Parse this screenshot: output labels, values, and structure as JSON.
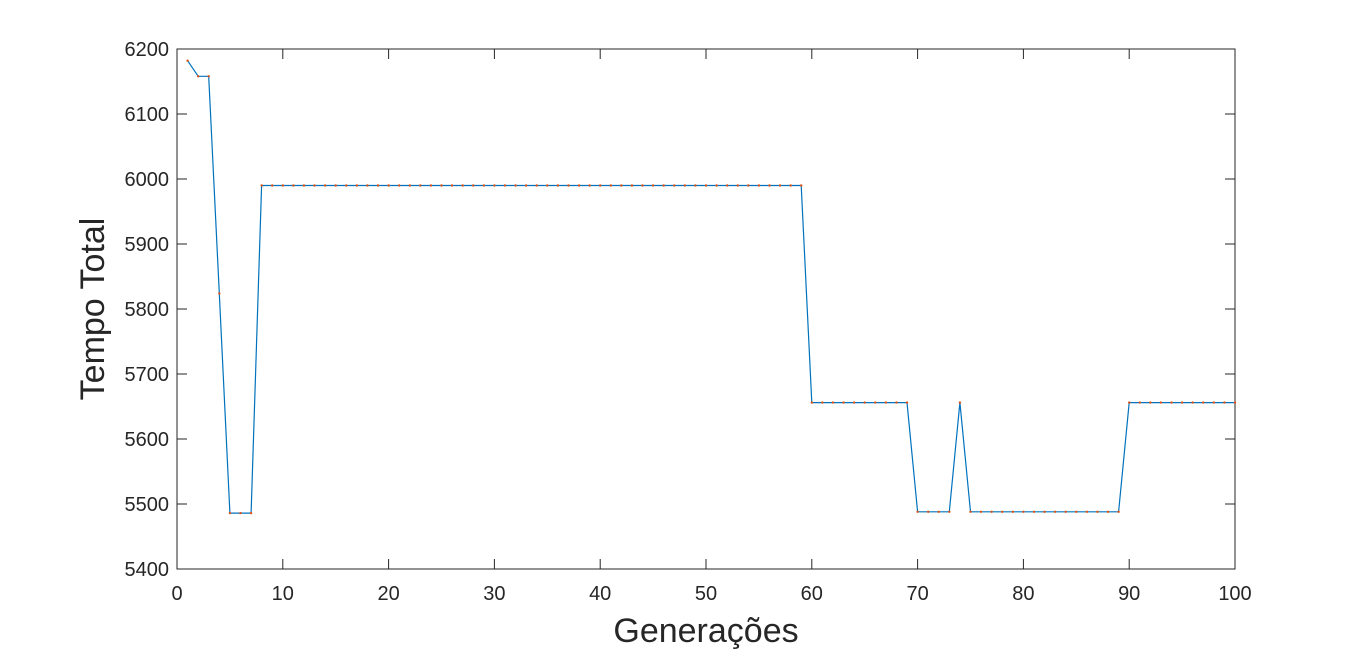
{
  "chart_data": {
    "type": "line",
    "title": "",
    "xlabel": "Generações",
    "ylabel": "Tempo Total",
    "xlim": [
      0,
      100
    ],
    "ylim": [
      5400,
      6200
    ],
    "xticks": [
      0,
      10,
      20,
      30,
      40,
      50,
      60,
      70,
      80,
      90,
      100
    ],
    "yticks": [
      5400,
      5500,
      5600,
      5700,
      5800,
      5900,
      6000,
      6100,
      6200
    ],
    "grid": false,
    "legend": "none",
    "line_color": "#0072BD",
    "marker_color": "#D95319",
    "series": [
      {
        "x": [
          1,
          2,
          3,
          4,
          5,
          6,
          7,
          8,
          9,
          10,
          11,
          12,
          13,
          14,
          15,
          16,
          17,
          18,
          19,
          20,
          21,
          22,
          23,
          24,
          25,
          26,
          27,
          28,
          29,
          30,
          31,
          32,
          33,
          34,
          35,
          36,
          37,
          38,
          39,
          40,
          41,
          42,
          43,
          44,
          45,
          46,
          47,
          48,
          49,
          50,
          51,
          52,
          53,
          54,
          55,
          56,
          57,
          58,
          59,
          60,
          61,
          62,
          63,
          64,
          65,
          66,
          67,
          68,
          69,
          70,
          71,
          72,
          73,
          74,
          75,
          76,
          77,
          78,
          79,
          80,
          81,
          82,
          83,
          84,
          85,
          86,
          87,
          88,
          89,
          90,
          91,
          92,
          93,
          94,
          95,
          96,
          97,
          98,
          99,
          100
        ],
        "y": [
          6182,
          6158,
          6158,
          5824,
          5486,
          5486,
          5486,
          5990,
          5990,
          5990,
          5990,
          5990,
          5990,
          5990,
          5990,
          5990,
          5990,
          5990,
          5990,
          5990,
          5990,
          5990,
          5990,
          5990,
          5990,
          5990,
          5990,
          5990,
          5990,
          5990,
          5990,
          5990,
          5990,
          5990,
          5990,
          5990,
          5990,
          5990,
          5990,
          5990,
          5990,
          5990,
          5990,
          5990,
          5990,
          5990,
          5990,
          5990,
          5990,
          5990,
          5990,
          5990,
          5990,
          5990,
          5990,
          5990,
          5990,
          5990,
          5990,
          5656,
          5656,
          5656,
          5656,
          5656,
          5656,
          5656,
          5656,
          5656,
          5656,
          5488,
          5488,
          5488,
          5488,
          5656,
          5488,
          5488,
          5488,
          5488,
          5488,
          5488,
          5488,
          5488,
          5488,
          5488,
          5488,
          5488,
          5488,
          5488,
          5488,
          5656,
          5656,
          5656,
          5656,
          5656,
          5656,
          5656,
          5656,
          5656,
          5656,
          5656
        ]
      }
    ]
  }
}
